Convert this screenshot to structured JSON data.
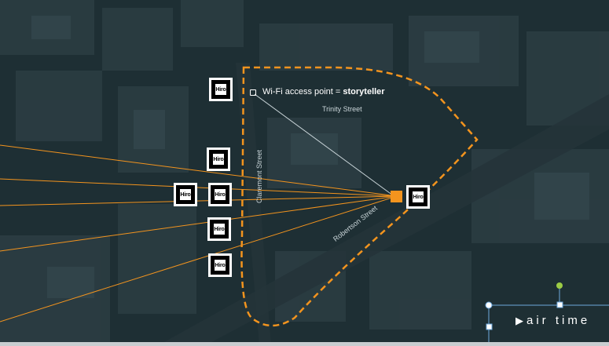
{
  "map": {
    "wifi_label_prefix": "Wi-Fi access point = ",
    "wifi_label_name": "storyteller",
    "streets": {
      "trinity": "Trinity Street",
      "claremont": "Claremont Street",
      "robertson": "Robertson Street"
    },
    "marker_text": "Hiro",
    "colors": {
      "zone_outline": "#f3941e",
      "signal_lines": "#f3941e",
      "router": "#f3941e"
    }
  },
  "ui": {
    "air_time_label": "air time",
    "play_icon": "play-icon"
  }
}
